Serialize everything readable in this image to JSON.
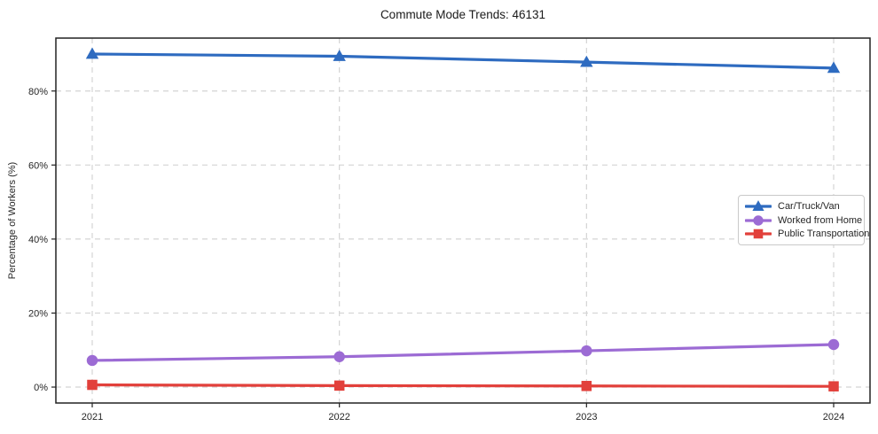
{
  "chart_data": {
    "type": "line",
    "title": "Commute Mode Trends: 46131",
    "xlabel": "",
    "ylabel": "Percentage of Workers (%)",
    "categories": [
      "2021",
      "2022",
      "2023",
      "2024"
    ],
    "series": [
      {
        "name": "Car/Truck/Van",
        "color": "#2e6bc0",
        "marker": "triangle",
        "values": [
          90.0,
          89.4,
          87.8,
          86.2
        ]
      },
      {
        "name": "Worked from Home",
        "color": "#9c6bd4",
        "marker": "circle",
        "values": [
          7.2,
          8.2,
          9.8,
          11.5
        ]
      },
      {
        "name": "Public Transportation",
        "color": "#e2403b",
        "marker": "square",
        "values": [
          0.6,
          0.4,
          0.3,
          0.2
        ]
      }
    ],
    "yticks": [
      0,
      20,
      40,
      60,
      80
    ],
    "ytick_suffix": "%",
    "ylim": [
      -4.3,
      94.3
    ],
    "grid": true,
    "grid_style": "dashed",
    "legend_position": "center-right",
    "colors": {
      "grid": "#d4d4d4",
      "spine": "#222222",
      "tick_text": "#262626",
      "background": "#ffffff"
    }
  }
}
